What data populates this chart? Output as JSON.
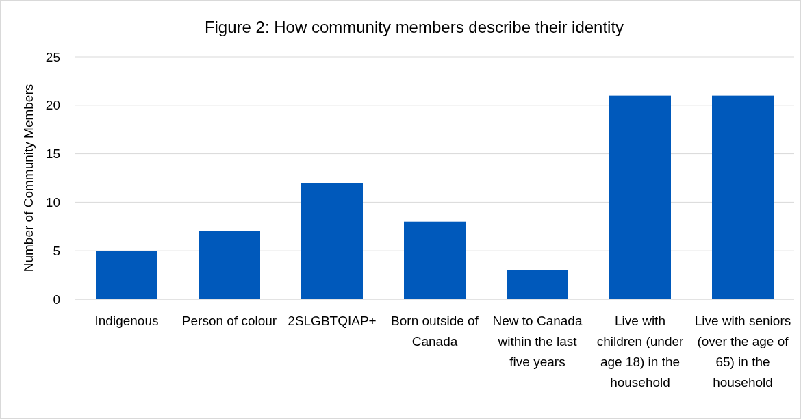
{
  "chart_data": {
    "type": "bar",
    "title": "Figure 2: How community members describe their identity",
    "ylabel": "Number of Community Members",
    "categories": [
      "Indigenous",
      "Person of colour",
      "2SLGBTQIAP+",
      "Born outside of Canada",
      "New to Canada within the last five years",
      "Live with children (under age 18) in the household",
      "Live with seniors (over the age of 65) in the household"
    ],
    "values": [
      5,
      7,
      12,
      8,
      3,
      21,
      21
    ],
    "color": "#0059bb",
    "ylim": [
      0,
      25
    ],
    "yticks": [
      0,
      5,
      10,
      15,
      20,
      25
    ],
    "grid": "y"
  }
}
